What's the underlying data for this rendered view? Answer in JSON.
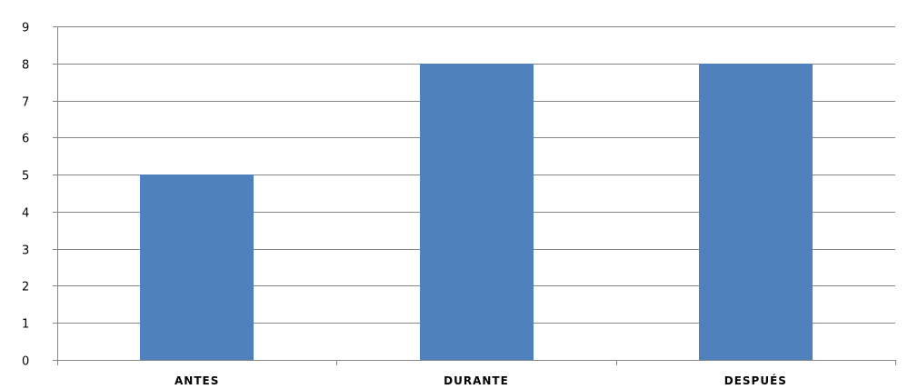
{
  "chart_data": {
    "type": "bar",
    "categories": [
      "ANTES",
      "DURANTE",
      "DESPUÉS"
    ],
    "values": [
      5,
      8,
      8
    ],
    "title": "",
    "xlabel": "",
    "ylabel": "",
    "ylim": [
      0,
      9
    ],
    "yticks": [
      0,
      1,
      2,
      3,
      4,
      5,
      6,
      7,
      8,
      9
    ],
    "grid": true,
    "legend": "none",
    "bar_color": "#4F81BD",
    "grid_color": "#868686"
  }
}
